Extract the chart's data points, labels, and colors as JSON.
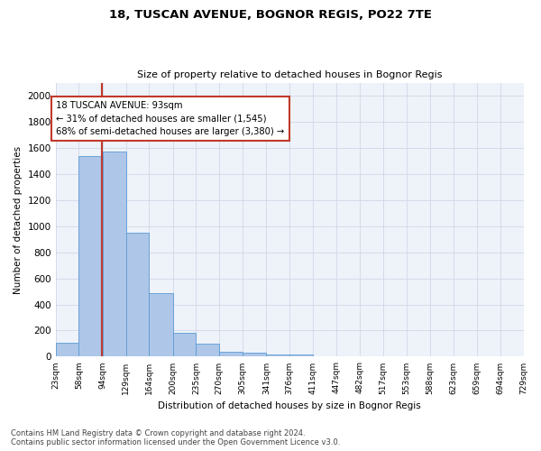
{
  "title1": "18, TUSCAN AVENUE, BOGNOR REGIS, PO22 7TE",
  "title2": "Size of property relative to detached houses in Bognor Regis",
  "xlabel": "Distribution of detached houses by size in Bognor Regis",
  "ylabel": "Number of detached properties",
  "bar_edges": [
    23,
    58,
    94,
    129,
    164,
    200,
    235,
    270,
    305,
    341,
    376,
    411,
    447,
    482,
    517,
    553,
    588,
    623,
    659,
    694,
    729
  ],
  "bar_heights": [
    110,
    1540,
    1570,
    950,
    490,
    185,
    100,
    38,
    28,
    18,
    15,
    0,
    0,
    0,
    0,
    0,
    0,
    0,
    0,
    0
  ],
  "bar_color": "#aec6e8",
  "bar_edgecolor": "#5b9bd5",
  "grid_color": "#d0d8e8",
  "bg_color": "#eef2f9",
  "vline_x": 93,
  "vline_color": "#c0392b",
  "annotation_text": "18 TUSCAN AVENUE: 93sqm\n← 31% of detached houses are smaller (1,545)\n68% of semi-detached houses are larger (3,380) →",
  "annotation_box_edgecolor": "#c0392b",
  "footnote": "Contains HM Land Registry data © Crown copyright and database right 2024.\nContains public sector information licensed under the Open Government Licence v3.0.",
  "ylim": [
    0,
    2100
  ],
  "yticks": [
    0,
    200,
    400,
    600,
    800,
    1000,
    1200,
    1400,
    1600,
    1800,
    2000
  ],
  "tick_labels": [
    "23sqm",
    "58sqm",
    "94sqm",
    "129sqm",
    "164sqm",
    "200sqm",
    "235sqm",
    "270sqm",
    "305sqm",
    "341sqm",
    "376sqm",
    "411sqm",
    "447sqm",
    "482sqm",
    "517sqm",
    "553sqm",
    "588sqm",
    "623sqm",
    "659sqm",
    "694sqm",
    "729sqm"
  ]
}
